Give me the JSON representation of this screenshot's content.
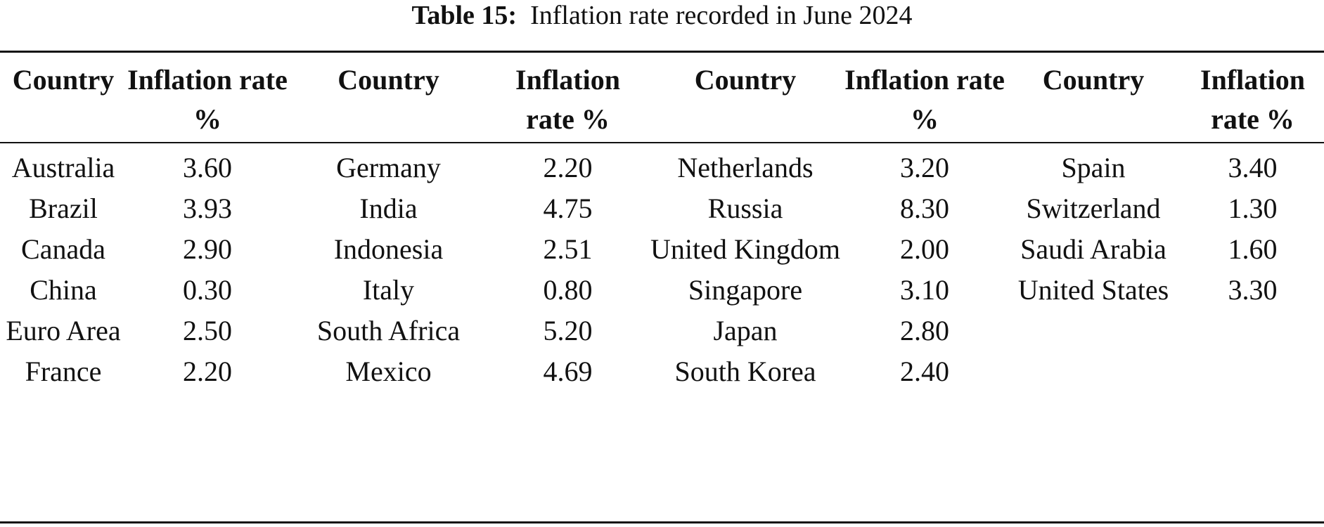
{
  "caption": {
    "label": "Table 15:",
    "text": "Inflation rate recorded in June 2024"
  },
  "headers": [
    "Country",
    "Inflation rate %",
    "Country",
    "Inflation rate %",
    "Country",
    "Inflation rate %",
    "Country",
    "Inflation rate %"
  ],
  "rows": [
    [
      "Australia",
      "3.60",
      "Germany",
      "2.20",
      "Netherlands",
      "3.20",
      "Spain",
      "3.40"
    ],
    [
      "Brazil",
      "3.93",
      "India",
      "4.75",
      "Russia",
      "8.30",
      "Switzerland",
      "1.30"
    ],
    [
      "Canada",
      "2.90",
      "Indonesia",
      "2.51",
      "United Kingdom",
      "2.00",
      "Saudi Arabia",
      "1.60"
    ],
    [
      "China",
      "0.30",
      "Italy",
      "0.80",
      "Singapore",
      "3.10",
      "United States",
      "3.30"
    ],
    [
      "Euro Area",
      "2.50",
      "South Africa",
      "5.20",
      "Japan",
      "2.80",
      "",
      ""
    ],
    [
      "France",
      "2.20",
      "Mexico",
      "4.69",
      "South Korea",
      "2.40",
      "",
      ""
    ]
  ]
}
